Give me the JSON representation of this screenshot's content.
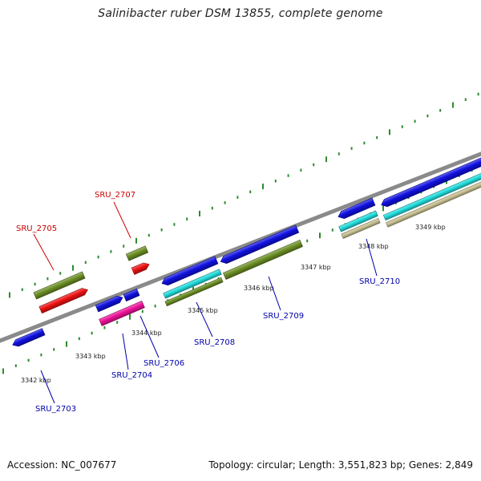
{
  "title": "Salinibacter ruber DSM 13855, complete genome",
  "footer": {
    "accession": "Accession: NC_007677",
    "summary": "Topology: circular; Length: 3,551,823 bp; Genes: 2,849"
  },
  "colors": {
    "backbone": "#8a8a8a",
    "tick": "#2e8b2e",
    "blue": "#1010e0",
    "red": "#ee1111",
    "olive": "#6b8e23",
    "magenta": "#ee1199",
    "cyan": "#22dddd",
    "tan": "#c8c090",
    "label_forward": "#cc0000",
    "label_reverse": "#0000aa"
  },
  "scale_labels": [
    "3342 kbp",
    "3343 kbp",
    "3344 kbp",
    "3345 kbp",
    "3346 kbp",
    "3347 kbp",
    "3348 kbp",
    "3349 kbp"
  ],
  "gene_labels": [
    "SRU_2703",
    "SRU_2704",
    "SRU_2705",
    "SRU_2706",
    "SRU_2707",
    "SRU_2708",
    "SRU_2709",
    "SRU_2710"
  ]
}
